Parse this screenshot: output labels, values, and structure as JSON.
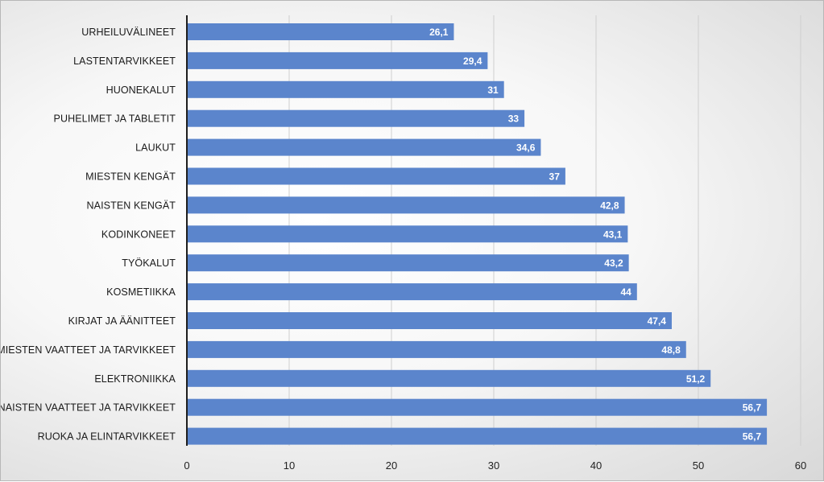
{
  "chart_data": {
    "type": "bar",
    "orientation": "horizontal",
    "title": "",
    "xlabel": "",
    "ylabel": "",
    "xlim": [
      0,
      60
    ],
    "x_ticks": [
      0,
      10,
      20,
      30,
      40,
      50,
      60
    ],
    "grid": true,
    "legend": "none",
    "bar_color": "#5b85cc",
    "data_label_color": "#ffffff",
    "categories": [
      "URHEILUVÄLINEET",
      "LASTENTARVIKKEET",
      "HUONEKALUT",
      "PUHELIMET JA TABLETIT",
      "LAUKUT",
      "MIESTEN KENGÄT",
      "NAISTEN KENGÄT",
      "KODINKONEET",
      "TYÖKALUT",
      "KOSMETIIKKA",
      "KIRJAT JA ÄÄNITTEET",
      "MIESTEN VAATTEET JA TARVIKKEET",
      "ELEKTRONIIKKA",
      "NAISTEN VAATTEET JA TARVIKKEET",
      "RUOKA JA ELINTARVIKKEET"
    ],
    "values": [
      26.1,
      29.4,
      31,
      33,
      34.6,
      37,
      42.8,
      43.1,
      43.2,
      44,
      47.4,
      48.8,
      51.2,
      56.7,
      56.7
    ],
    "data_labels": [
      "26,1",
      "29,4",
      "31",
      "33",
      "34,6",
      "37",
      "42,8",
      "43,1",
      "43,2",
      "44",
      "47,4",
      "48,8",
      "51,2",
      "56,7",
      "56,7"
    ]
  }
}
